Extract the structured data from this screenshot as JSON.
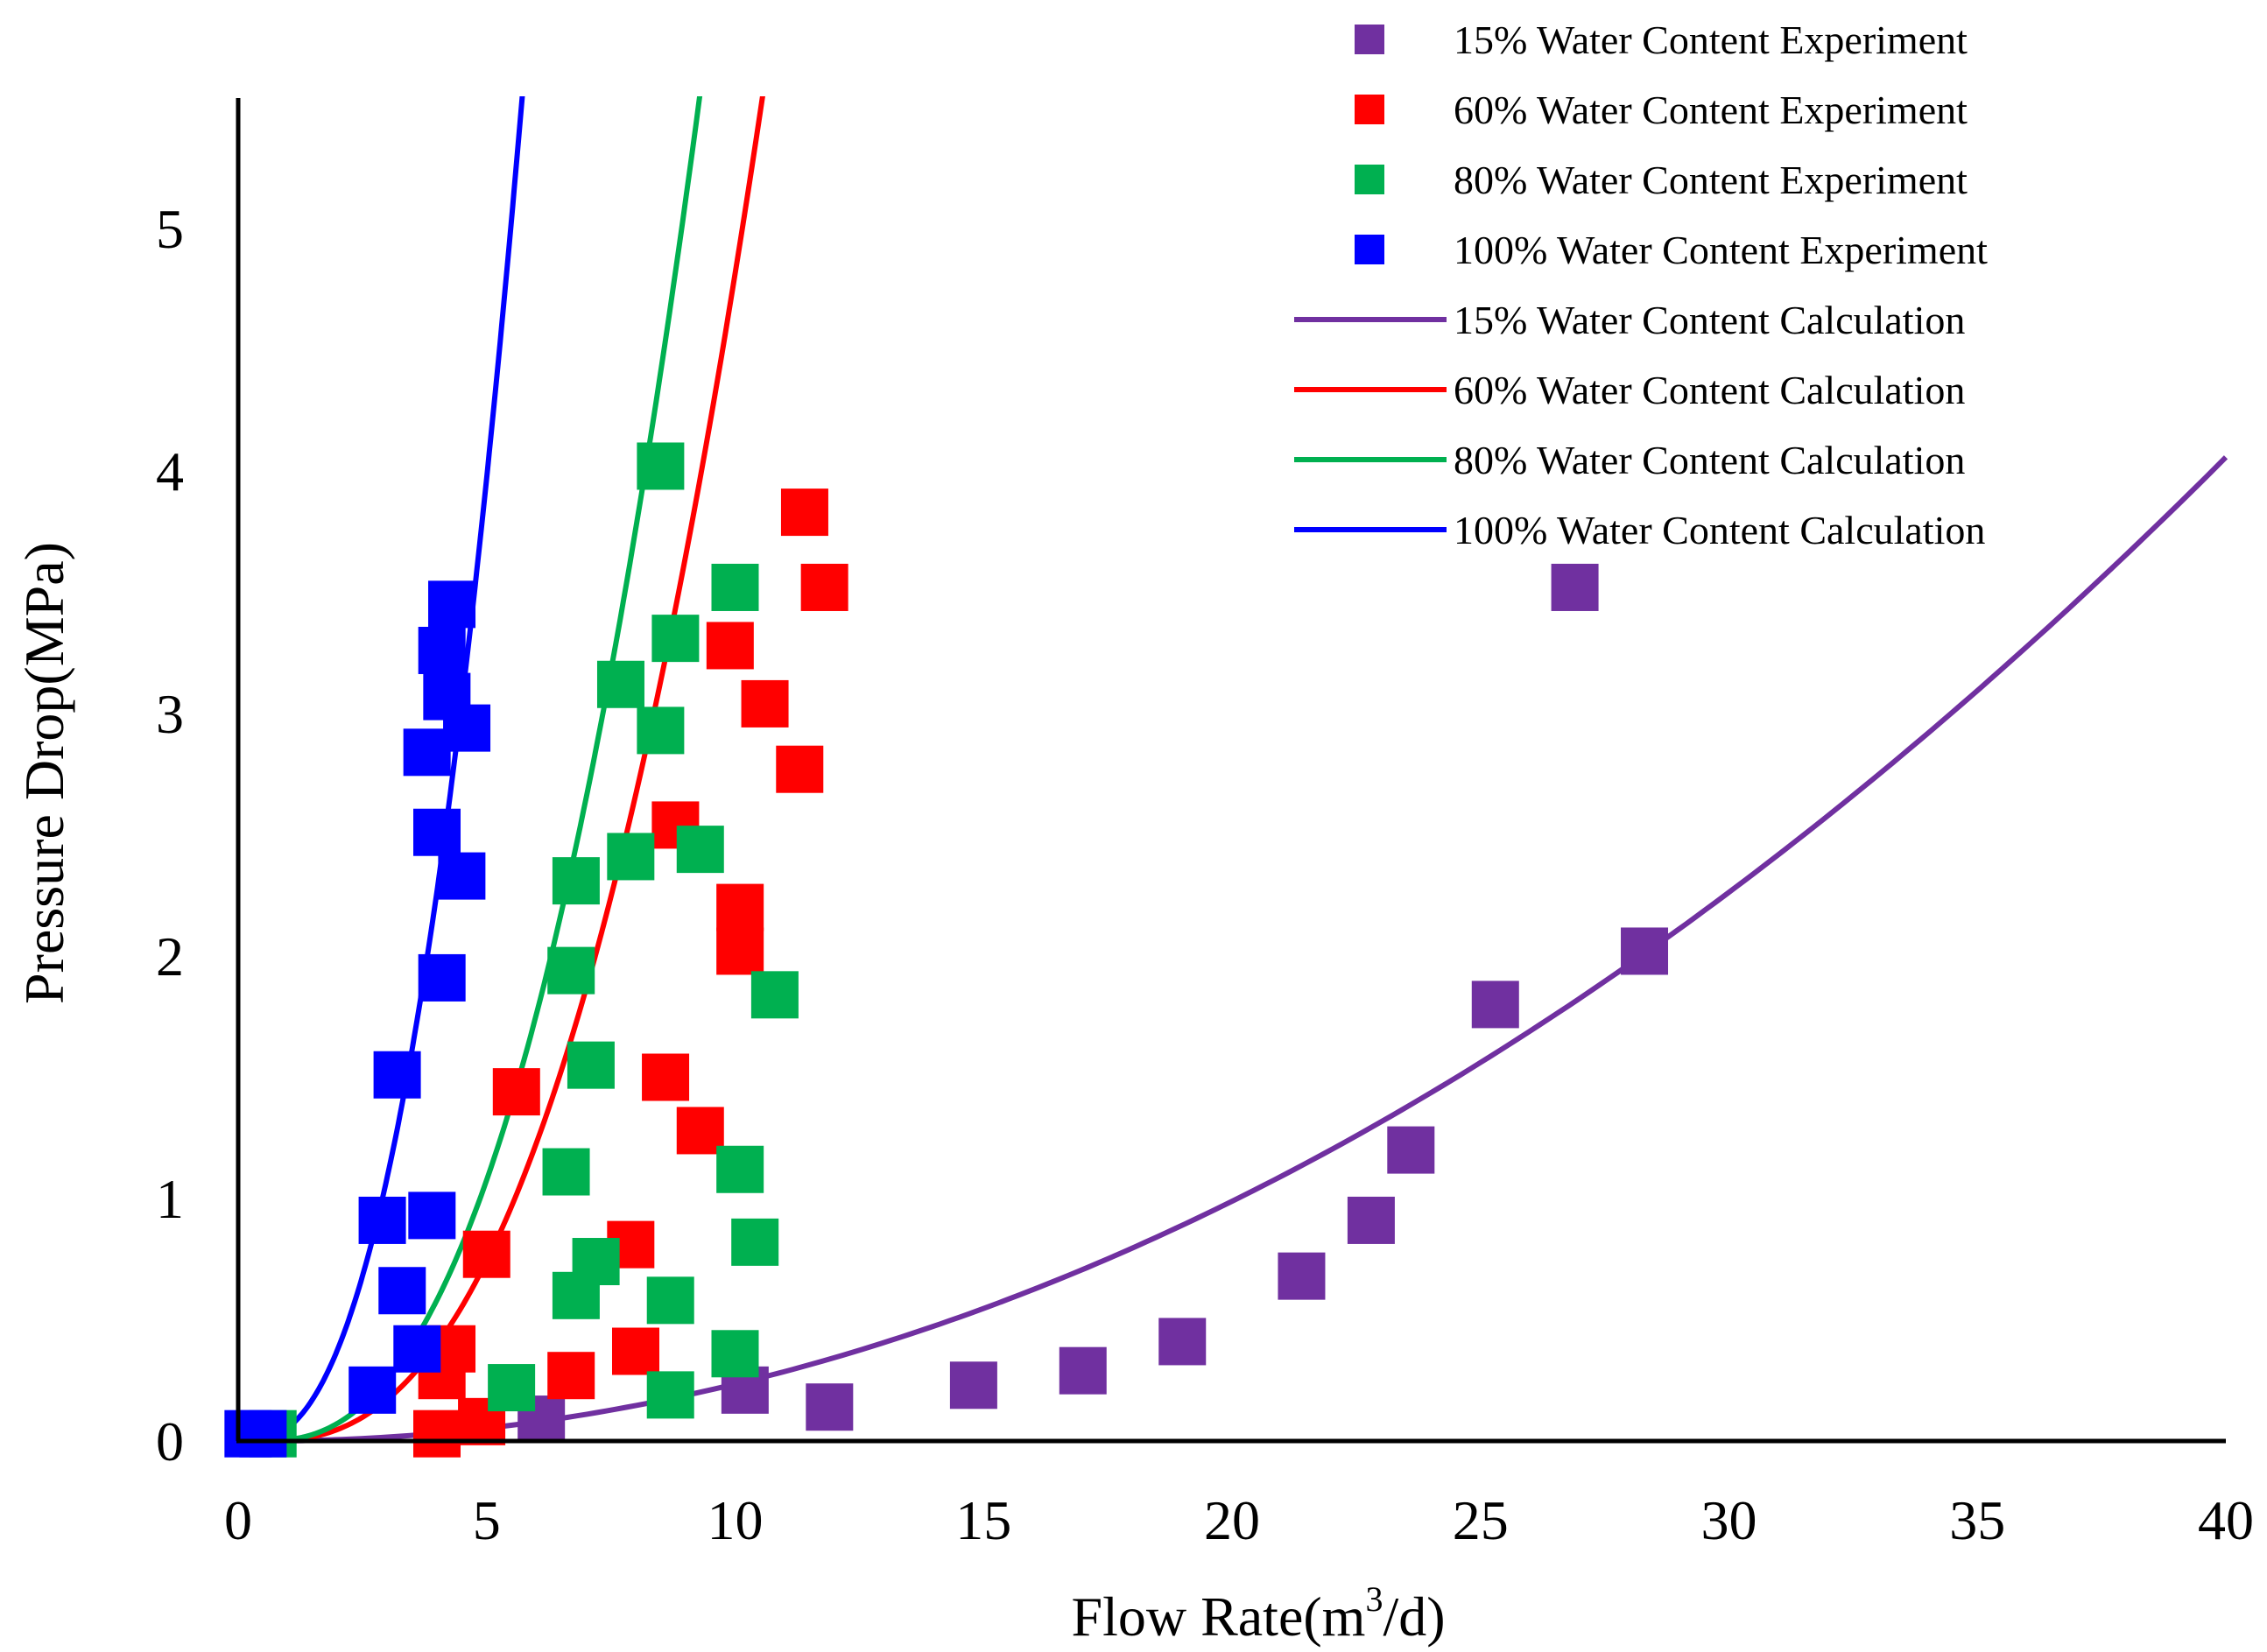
{
  "chart_data": {
    "type": "scatter",
    "title": "",
    "xlabel": "Flow Rate(m",
    "xlabel_sup": "3",
    "xlabel_tail": "/d)",
    "ylabel": "Pressure Drop(MPa)",
    "xlim": [
      0,
      40
    ],
    "ylim": [
      0,
      5.5
    ],
    "xticks": [
      "0",
      "5",
      "10",
      "15",
      "20",
      "25",
      "30",
      "35",
      "40"
    ],
    "yticks": [
      "0",
      "1",
      "2",
      "3",
      "4",
      "5"
    ],
    "grid": false,
    "legend_position": "top-right",
    "series": [
      {
        "name": "15% Water Content Experiment",
        "kind": "marker",
        "color": "#7030a0",
        "points": [
          [
            6.1,
            0.09
          ],
          [
            10.2,
            0.21
          ],
          [
            11.9,
            0.14
          ],
          [
            14.8,
            0.23
          ],
          [
            17.0,
            0.29
          ],
          [
            19.0,
            0.41
          ],
          [
            21.4,
            0.68
          ],
          [
            22.8,
            0.91
          ],
          [
            23.6,
            1.2
          ],
          [
            25.3,
            1.8
          ],
          [
            26.9,
            3.52
          ],
          [
            28.3,
            2.02
          ]
        ]
      },
      {
        "name": "60% Water Content Experiment",
        "kind": "marker",
        "color": "#ff0000",
        "points": [
          [
            4.0,
            0.03
          ],
          [
            4.1,
            0.27
          ],
          [
            4.3,
            0.38
          ],
          [
            4.9,
            0.08
          ],
          [
            5.0,
            0.77
          ],
          [
            5.6,
            1.44
          ],
          [
            6.7,
            0.27
          ],
          [
            7.9,
            0.81
          ],
          [
            8.0,
            0.37
          ],
          [
            8.6,
            1.5
          ],
          [
            8.8,
            2.54
          ],
          [
            9.3,
            1.28
          ],
          [
            9.9,
            3.28
          ],
          [
            10.1,
            2.02
          ],
          [
            10.1,
            2.2
          ],
          [
            10.6,
            3.04
          ],
          [
            11.3,
            2.77
          ],
          [
            11.4,
            3.83
          ],
          [
            11.8,
            3.52
          ]
        ]
      },
      {
        "name": "80% Water Content Experiment",
        "kind": "marker",
        "color": "#00b050",
        "points": [
          [
            0.7,
            0.03
          ],
          [
            5.5,
            0.22
          ],
          [
            6.6,
            1.11
          ],
          [
            6.7,
            1.94
          ],
          [
            6.8,
            0.6
          ],
          [
            6.8,
            2.31
          ],
          [
            7.1,
            1.55
          ],
          [
            7.2,
            0.74
          ],
          [
            7.7,
            3.12
          ],
          [
            7.9,
            2.41
          ],
          [
            8.5,
            2.93
          ],
          [
            8.5,
            4.02
          ],
          [
            8.7,
            0.58
          ],
          [
            8.7,
            0.19
          ],
          [
            8.8,
            3.31
          ],
          [
            9.3,
            2.44
          ],
          [
            10.0,
            3.52
          ],
          [
            10.0,
            0.36
          ],
          [
            10.1,
            1.12
          ],
          [
            10.4,
            0.82
          ],
          [
            10.8,
            1.84
          ]
        ]
      },
      {
        "name": "100% Water Content Experiment",
        "kind": "marker",
        "color": "#0000ff",
        "points": [
          [
            0.2,
            0.03
          ],
          [
            0.5,
            0.03
          ],
          [
            2.7,
            0.21
          ],
          [
            2.9,
            0.91
          ],
          [
            3.2,
            1.51
          ],
          [
            3.3,
            0.62
          ],
          [
            3.6,
            0.38
          ],
          [
            3.8,
            2.84
          ],
          [
            3.9,
            0.93
          ],
          [
            4.0,
            2.51
          ],
          [
            4.1,
            3.26
          ],
          [
            4.1,
            1.91
          ],
          [
            4.2,
            3.07
          ],
          [
            4.3,
            3.45
          ],
          [
            4.5,
            2.33
          ],
          [
            4.6,
            2.94
          ]
        ]
      },
      {
        "name": "15% Water Content Calculation",
        "kind": "line",
        "color": "#7030a0",
        "model": {
          "a": 0.0026,
          "b": 2.0,
          "x0": 0.5,
          "x1": 40
        }
      },
      {
        "name": "60% Water Content Calculation",
        "kind": "line",
        "color": "#ff0000",
        "model": {
          "a": 0.0173,
          "b": 2.5,
          "x0": 0.5,
          "x1": 16.0
        }
      },
      {
        "name": "80% Water Content Calculation",
        "kind": "line",
        "color": "#00b050",
        "model": {
          "a": 0.027,
          "b": 2.45,
          "x0": 0.5,
          "x1": 13.8
        }
      },
      {
        "name": "100% Water Content Calculation",
        "kind": "line",
        "color": "#0000ff",
        "model": {
          "a": 0.092,
          "b": 2.4,
          "x0": 0.2,
          "x1": 6.5
        }
      }
    ]
  }
}
